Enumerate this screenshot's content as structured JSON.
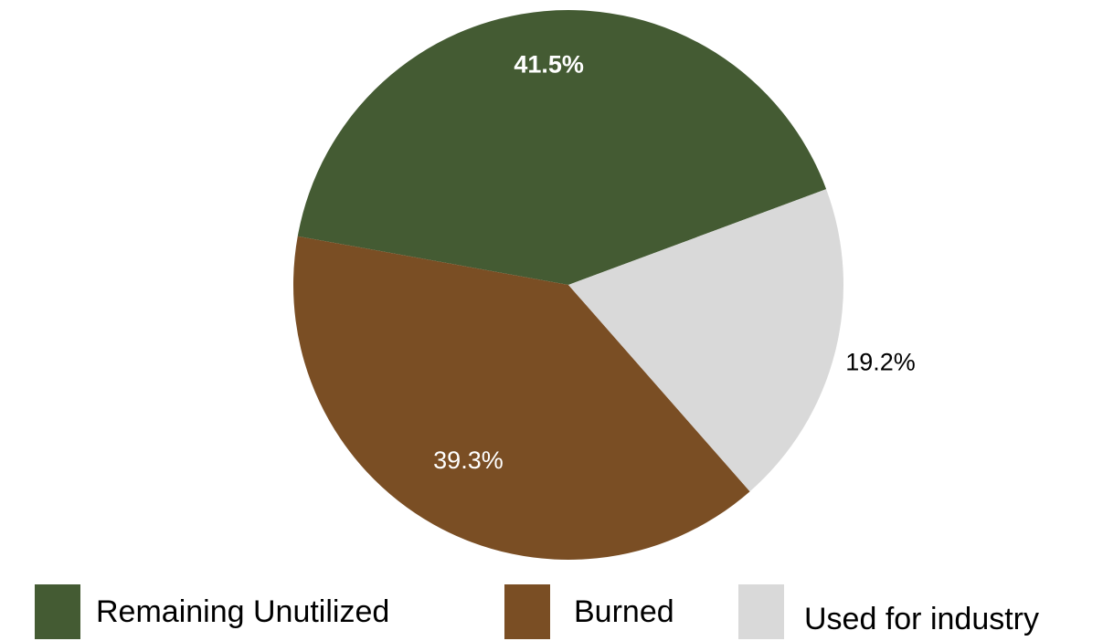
{
  "chart_data": {
    "type": "pie",
    "categories": [
      "Remaining Unutilized",
      "Burned",
      "Used for industry"
    ],
    "values": [
      41.5,
      39.3,
      19.2
    ],
    "value_labels": [
      "41.5%",
      "39.3%",
      "19.2%"
    ],
    "colors": [
      "#445b33",
      "#7a4e24",
      "#d9d9d9"
    ],
    "legend": "bottom"
  }
}
